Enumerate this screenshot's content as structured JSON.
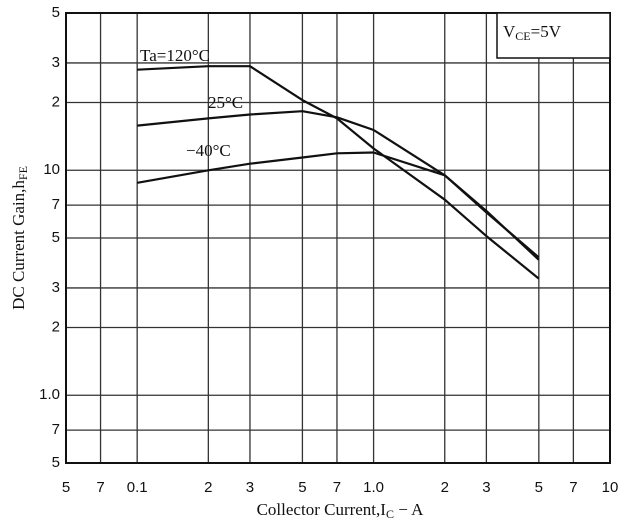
{
  "chart_data": {
    "type": "line",
    "annotation": [
      "V",
      "CE",
      "=5V"
    ],
    "xlabel": [
      "Collector Current,I",
      "C",
      " − A"
    ],
    "ylabel": [
      "DC Current Gain,h",
      "FE"
    ],
    "x": [
      0.1,
      0.2,
      0.3,
      0.5,
      0.7,
      1.0,
      2,
      3,
      5
    ],
    "series": [
      {
        "name": "Ta=120°C",
        "color": "#111111",
        "values": [
          28,
          29,
          29,
          20.5,
          17,
          12.5,
          7.4,
          5.1,
          3.3
        ]
      },
      {
        "name": "25°C",
        "color": "#111111",
        "values": [
          15.8,
          17,
          17.7,
          18.3,
          17.2,
          15.1,
          9.5,
          6.6,
          4.0
        ]
      },
      {
        "name": "−40°C",
        "color": "#111111",
        "values": [
          8.8,
          10,
          10.7,
          11.4,
          11.9,
          12.0,
          9.5,
          6.5,
          4.1
        ]
      }
    ],
    "xlog": true,
    "ylog": true,
    "grid": true,
    "xlim": [
      0.05,
      10
    ],
    "ylim": [
      0.5,
      50
    ],
    "xticks": [
      {
        "value": 0.05,
        "label": "5"
      },
      {
        "value": 0.07,
        "label": "7"
      },
      0.1,
      {
        "value": 0.2,
        "label": "2"
      },
      {
        "value": 0.3,
        "label": "3"
      },
      {
        "value": 0.5,
        "label": "5"
      },
      {
        "value": 0.7,
        "label": "7"
      },
      {
        "value": 1,
        "label": "1.0"
      },
      2,
      3,
      5,
      7,
      10
    ],
    "yticks": [
      {
        "value": 50,
        "label": "5"
      },
      {
        "value": 30,
        "label": "3"
      },
      {
        "value": 20,
        "label": "2"
      },
      10,
      7,
      5,
      3,
      2,
      {
        "value": 1,
        "label": "1.0"
      },
      {
        "value": 0.7,
        "label": "7"
      },
      {
        "value": 0.5,
        "label": "5"
      }
    ]
  }
}
